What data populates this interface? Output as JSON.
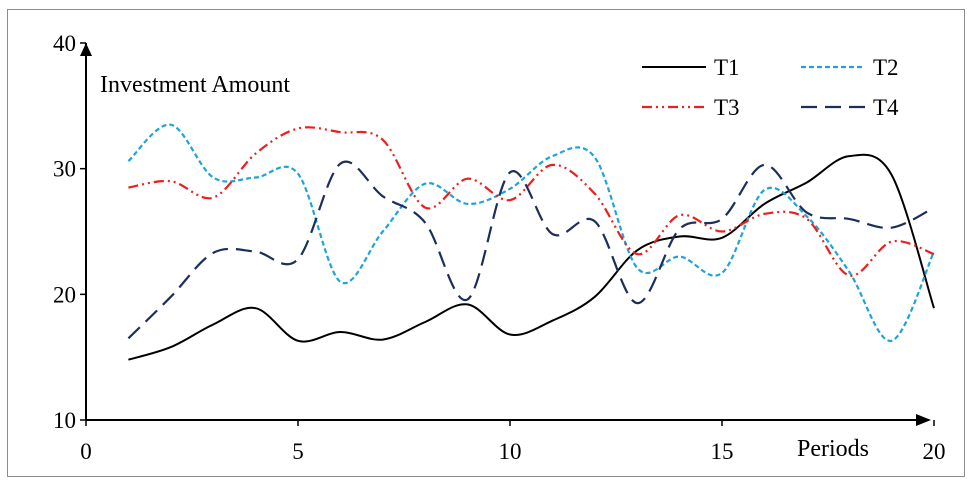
{
  "chart_data": {
    "type": "line",
    "title": "",
    "xlabel": "Periods",
    "ylabel": "Investment Amount",
    "xlim": [
      0,
      20
    ],
    "ylim": [
      10,
      40
    ],
    "xticks": [
      0,
      5,
      10,
      15,
      20
    ],
    "yticks": [
      10,
      20,
      30,
      40
    ],
    "grid": false,
    "legend_position": "top-right",
    "x": [
      1,
      2,
      3,
      4,
      5,
      6,
      7,
      8,
      9,
      10,
      11,
      12,
      13,
      14,
      15,
      16,
      17,
      18,
      19,
      20
    ],
    "series": [
      {
        "name": "T1",
        "color": "#000000",
        "dash": "solid",
        "values": [
          14.8,
          15.8,
          17.6,
          18.9,
          16.3,
          17.0,
          16.4,
          17.8,
          19.2,
          16.8,
          17.9,
          19.8,
          23.5,
          24.6,
          24.5,
          27.2,
          28.9,
          31.0,
          29.5,
          18.9
        ]
      },
      {
        "name": "T2",
        "color": "#1fa3d8",
        "dash": "dotted",
        "values": [
          30.6,
          33.5,
          29.3,
          29.3,
          29.6,
          21.0,
          25.0,
          28.8,
          27.2,
          28.4,
          31.0,
          30.9,
          22.1,
          23.0,
          21.7,
          28.3,
          26.2,
          21.8,
          16.3,
          23.4
        ]
      },
      {
        "name": "T3",
        "color": "#e8211f",
        "dash": "dash-dot-dot",
        "values": [
          28.5,
          29.0,
          27.7,
          31.2,
          33.2,
          32.9,
          32.3,
          26.9,
          29.2,
          27.5,
          30.3,
          28.0,
          23.2,
          26.3,
          25.0,
          26.4,
          26.0,
          21.5,
          24.2,
          23.2
        ]
      },
      {
        "name": "T4",
        "color": "#1c2f5c",
        "dash": "long-dash",
        "values": [
          16.5,
          19.8,
          23.3,
          23.4,
          22.8,
          30.4,
          27.8,
          25.7,
          19.6,
          29.7,
          24.8,
          25.8,
          19.3,
          25.2,
          26.0,
          30.3,
          26.5,
          26.0,
          25.3,
          26.9
        ]
      }
    ]
  }
}
